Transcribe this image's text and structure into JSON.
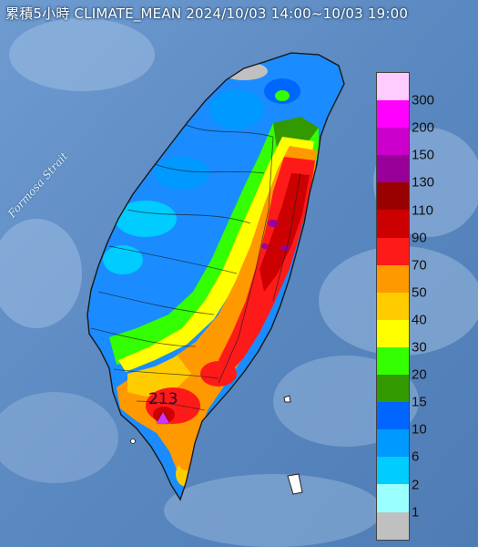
{
  "title": "累積5小時 CLIMATE_MEAN 2024/10/03 14:00~10/03 19:00",
  "map_labels": {
    "strait": "Formosa Strait"
  },
  "peak": {
    "value": "213",
    "marker_icon": "triangle-icon",
    "marker_color": "#cc33ff"
  },
  "legend": {
    "labels": [
      "300",
      "200",
      "150",
      "130",
      "110",
      "90",
      "70",
      "50",
      "40",
      "30",
      "20",
      "15",
      "10",
      "6",
      "2",
      "1"
    ],
    "colors": [
      "#ffccff",
      "#ff00ff",
      "#cc00cc",
      "#990099",
      "#990000",
      "#cc0000",
      "#ff1a1a",
      "#ff9900",
      "#ffcc00",
      "#ffff00",
      "#33ff00",
      "#339900",
      "#0066ff",
      "#0099ff",
      "#00ccff",
      "#99ffff",
      "#c0c0c0"
    ]
  },
  "colors": {
    "sea": "#5f8fc8",
    "sea_light": "#9dbde0",
    "land_dry": "#c0c0c0"
  }
}
